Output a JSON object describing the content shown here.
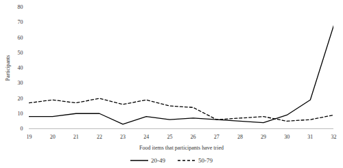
{
  "chart_data": {
    "type": "line",
    "x_label": "Food items that participants have tried",
    "y_label": "Participants",
    "x": [
      19,
      20,
      21,
      22,
      23,
      24,
      25,
      26,
      27,
      28,
      29,
      30,
      31,
      32
    ],
    "xlim": [
      19,
      32
    ],
    "xticks": [
      19,
      20,
      21,
      22,
      23,
      24,
      25,
      26,
      27,
      28,
      29,
      30,
      31,
      32
    ],
    "ylim": [
      0,
      80
    ],
    "yticks": [
      0,
      10,
      20,
      30,
      40,
      50,
      60,
      70,
      80
    ],
    "grid": false,
    "legend": "bottom",
    "series": [
      {
        "name": "20-49",
        "color": "#000000",
        "line_style": "solid",
        "values": [
          8,
          8,
          10,
          10,
          3,
          8,
          6,
          7,
          6,
          5,
          4,
          9,
          19,
          68
        ]
      },
      {
        "name": "50-79",
        "color": "#000000",
        "line_style": "dashed",
        "values": [
          17,
          19,
          17,
          20,
          16,
          19,
          15,
          14,
          6,
          7,
          8,
          5,
          6,
          9
        ]
      }
    ]
  }
}
